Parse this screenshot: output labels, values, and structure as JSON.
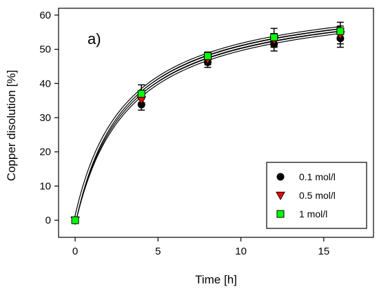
{
  "chart_data": {
    "type": "scatter",
    "annotation": "a)",
    "xlabel": "Time [h]",
    "ylabel": "Copper disolution [%]",
    "xlim": [
      -1,
      18
    ],
    "ylim": [
      -5,
      62
    ],
    "xticks": [
      0,
      5,
      10,
      15
    ],
    "yticks": [
      0,
      10,
      20,
      30,
      40,
      50,
      60
    ],
    "grid": false,
    "legend_position": "bottom-right",
    "series": [
      {
        "name": "0.1 mol/l",
        "marker": "circle",
        "color": "#000000",
        "x": [
          0,
          4,
          8,
          12,
          16
        ],
        "y": [
          0,
          33.8,
          46.2,
          51.5,
          53.2
        ],
        "error": [
          0,
          1.6,
          1.5,
          2.0,
          2.6
        ],
        "fit": {
          "ymax": 66.0,
          "k": 0.31
        }
      },
      {
        "name": "0.5 mol/l",
        "marker": "triangle-down",
        "color": "#ff0000",
        "x": [
          0,
          4,
          8,
          12,
          16
        ],
        "y": [
          0,
          35.2,
          47.0,
          52.6,
          54.2
        ],
        "error": [
          0,
          1.6,
          1.5,
          2.0,
          2.6
        ],
        "fit": {
          "ymax": 66.5,
          "k": 0.32
        }
      },
      {
        "name": "1 mol/l",
        "marker": "square",
        "color": "#00ff00",
        "x": [
          0,
          4,
          8,
          12,
          16
        ],
        "y": [
          0,
          37.0,
          48.0,
          53.5,
          55.3
        ],
        "error": [
          0,
          2.6,
          1.2,
          2.6,
          2.6
        ],
        "fit": {
          "ymax": 67.0,
          "k": 0.33
        }
      }
    ]
  }
}
